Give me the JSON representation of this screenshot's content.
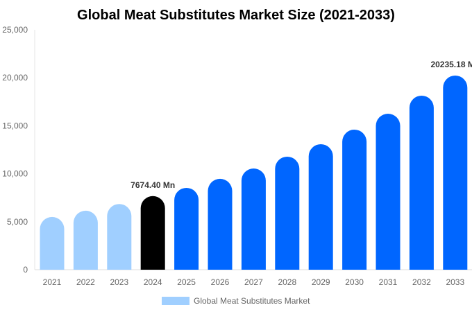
{
  "chart_data": {
    "type": "bar",
    "title": "Global Meat Substitutes Market Size (2021-2033)",
    "xlabel": "",
    "ylabel": "",
    "ylim": [
      0,
      25000
    ],
    "yticks": [
      "0",
      "5,000",
      "10,000",
      "15,000",
      "20,000",
      "25,000"
    ],
    "ytick_values": [
      0,
      5000,
      10000,
      15000,
      20000,
      25000
    ],
    "grid": false,
    "legend_position": "bottom",
    "categories": [
      "2021",
      "2022",
      "2023",
      "2024",
      "2025",
      "2026",
      "2027",
      "2028",
      "2029",
      "2030",
      "2031",
      "2032",
      "2033"
    ],
    "series": [
      {
        "name": "Global Meat Substitutes Market",
        "values": [
          5500,
          6150,
          6850,
          7674.4,
          8530,
          9470,
          10550,
          11780,
          13080,
          14600,
          16260,
          18140,
          20235.18
        ]
      }
    ],
    "bar_colors": [
      "#a0cfff",
      "#a0cfff",
      "#a0cfff",
      "#000000",
      "#0066ff",
      "#0066ff",
      "#0066ff",
      "#0066ff",
      "#0066ff",
      "#0066ff",
      "#0066ff",
      "#0066ff",
      "#0066ff"
    ],
    "data_labels": [
      {
        "category": "2024",
        "text": "7674.40 Mn"
      },
      {
        "category": "2033",
        "text": "20235.18 Mn"
      }
    ],
    "legend_color": "#a0cfff"
  }
}
